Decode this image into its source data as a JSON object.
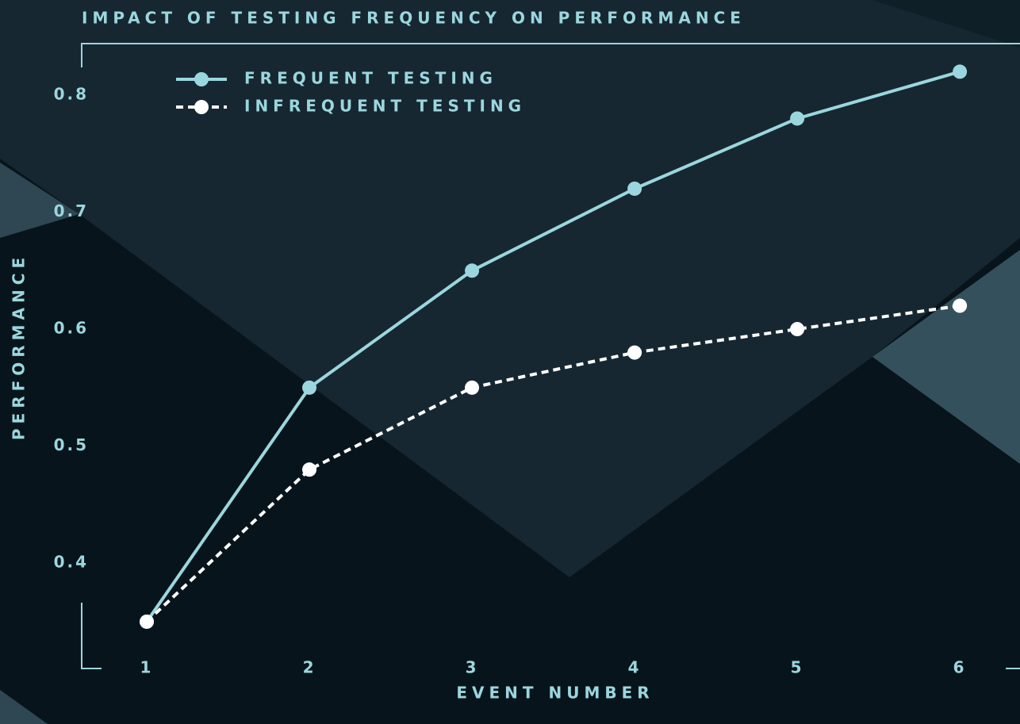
{
  "chart_data": {
    "type": "line",
    "title": "IMPACT OF TESTING FREQUENCY ON PERFORMANCE",
    "x_label": "EVENT NUMBER",
    "y_label": "PERFORMANCE",
    "x": [
      1,
      2,
      3,
      4,
      5,
      6
    ],
    "series": [
      {
        "name": "FREQUENT TESTING",
        "color": "#9bd6de",
        "linestyle": "solid",
        "values": [
          0.35,
          0.55,
          0.65,
          0.72,
          0.78,
          0.82
        ]
      },
      {
        "name": "INFREQUENT TESTING",
        "color": "#ffffff",
        "linestyle": "dashed",
        "values": [
          0.35,
          0.48,
          0.55,
          0.58,
          0.6,
          0.62
        ]
      }
    ],
    "xlim": [
      0.6,
      6.37
    ],
    "xticks": [
      1,
      2,
      3,
      4,
      5,
      6
    ],
    "ylim": [
      0.31,
      0.844
    ],
    "yticks": [
      0.4,
      0.5,
      0.6,
      0.7,
      0.8
    ],
    "grid": false,
    "legend": "upper left"
  }
}
